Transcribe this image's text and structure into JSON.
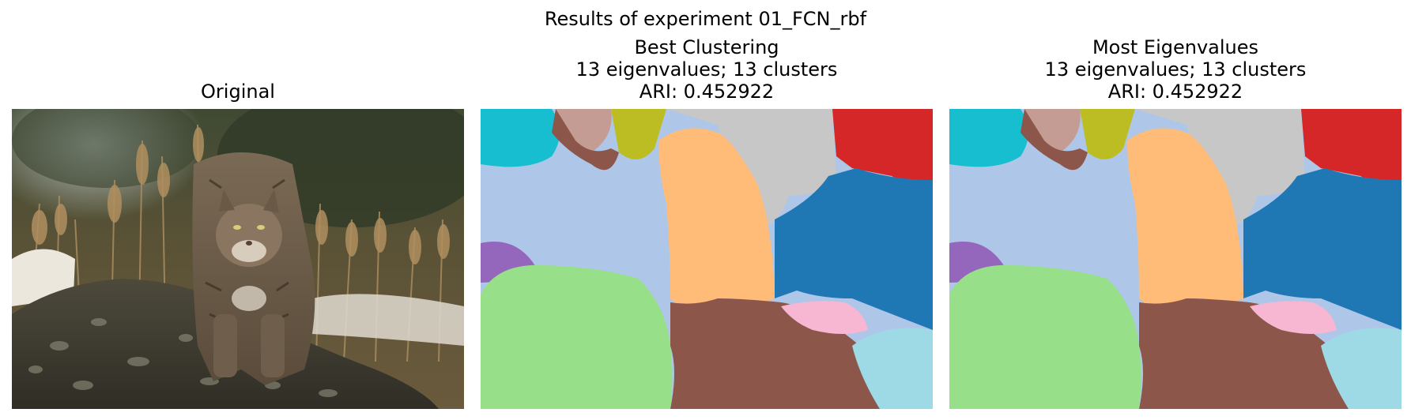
{
  "figure": {
    "suptitle": "Results of experiment 01_FCN_rbf"
  },
  "panels": [
    {
      "title_lines": [
        "Original"
      ],
      "content": "photograph of a bobcat on a mossy rock"
    },
    {
      "title_lines": [
        "Best Clustering",
        "13 eigenvalues; 13 clusters",
        "ARI: 0.452922"
      ],
      "content": "segmentation map"
    },
    {
      "title_lines": [
        "Most Eigenvalues",
        "13 eigenvalues; 13 clusters",
        "ARI: 0.452922"
      ],
      "content": "segmentation map"
    }
  ],
  "palette": {
    "tab_blue": "#1f77b4",
    "light_blue": "#aec7e8",
    "orange_light": "#ffbb78",
    "green_light": "#98df8a",
    "red": "#d62728",
    "purple": "#9467bd",
    "brown": "#8c564b",
    "brown_light": "#c49c94",
    "pink_light": "#f7b6d2",
    "gray_light": "#c7c7c7",
    "olive": "#bcbd22",
    "cyan": "#17becf",
    "cyan_light": "#9edae5"
  }
}
